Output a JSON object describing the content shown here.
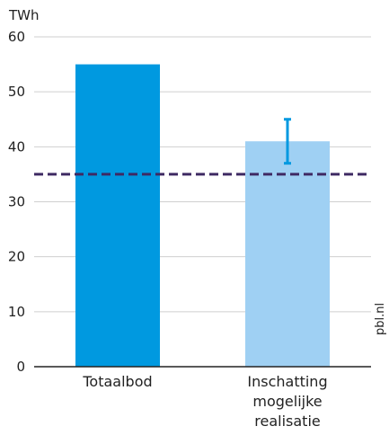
{
  "chart_data": {
    "type": "bar",
    "unit": "TWh",
    "categories": [
      [
        "Totaalbod"
      ],
      [
        "Inschatting",
        "mogelijke",
        "realisatie"
      ]
    ],
    "values": [
      55,
      41
    ],
    "error_bar": {
      "category_index": 1,
      "low": 37,
      "high": 45
    },
    "reference_line": {
      "value": 35,
      "style": "dashed"
    },
    "ylim": [
      0,
      60
    ],
    "yticks": [
      "0",
      "10",
      "20",
      "30",
      "40",
      "50",
      "60"
    ],
    "grid": true,
    "legend": "none",
    "source": "pbl.nl"
  },
  "colors": {
    "bar_primary": "#0099e0",
    "bar_secondary": "#9fd0f3",
    "error_bar": "#0099e0",
    "reference_line": "#3f2a63",
    "grid": "#cfcfcf",
    "axis": "#222222"
  }
}
